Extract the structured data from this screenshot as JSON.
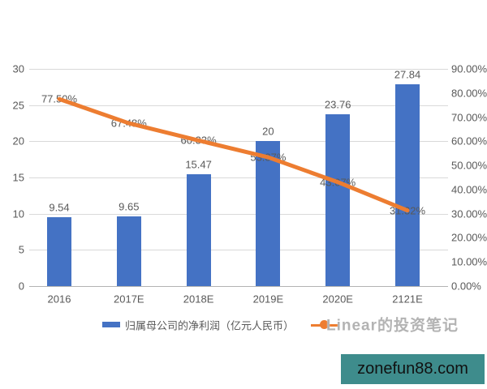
{
  "legend": {
    "bar_label": "归属母公司的净利润（亿元人民币）",
    "line_label": ""
  },
  "watermarks": {
    "center": "Linear的投资笔记",
    "site": "zonefun88.com"
  },
  "colors": {
    "bar": "#4472C4",
    "line": "#ED7D31",
    "grid": "#D9D9D9",
    "axis_text": "#595959",
    "badge_bg": "#3E8C8C",
    "badge_text": "#111111"
  },
  "chart_data": {
    "type": "bar",
    "categories": [
      "2016",
      "2017E",
      "2018E",
      "2019E",
      "2020E",
      "2121E"
    ],
    "series": [
      {
        "name": "归属母公司的净利润（亿元人民币）",
        "type": "bar",
        "axis": "left",
        "color": "#4472C4",
        "values": [
          9.54,
          9.65,
          15.47,
          20,
          23.76,
          27.84
        ],
        "labels": [
          "9.54",
          "9.65",
          "15.47",
          "20",
          "23.76",
          "27.84"
        ]
      },
      {
        "name": "",
        "type": "line",
        "axis": "right",
        "color": "#ED7D31",
        "values": [
          77.5,
          67.48,
          60.33,
          53.37,
          43.07,
          31.32
        ],
        "labels": [
          "77.50%",
          "67.48%",
          "60.33%",
          "53.37%",
          "43.07%",
          "31.32%"
        ]
      }
    ],
    "left_axis": {
      "min": 0,
      "max": 30,
      "step": 5,
      "ticks": [
        "30",
        "25",
        "20",
        "15",
        "10",
        "5",
        "0"
      ]
    },
    "right_axis": {
      "min": 0,
      "max": 90,
      "step": 10,
      "ticks": [
        "90.00%",
        "80.00%",
        "70.00%",
        "60.00%",
        "50.00%",
        "40.00%",
        "30.00%",
        "20.00%",
        "10.00%",
        "0.00%"
      ]
    },
    "grid": true,
    "legend_position": "bottom",
    "title": ""
  }
}
